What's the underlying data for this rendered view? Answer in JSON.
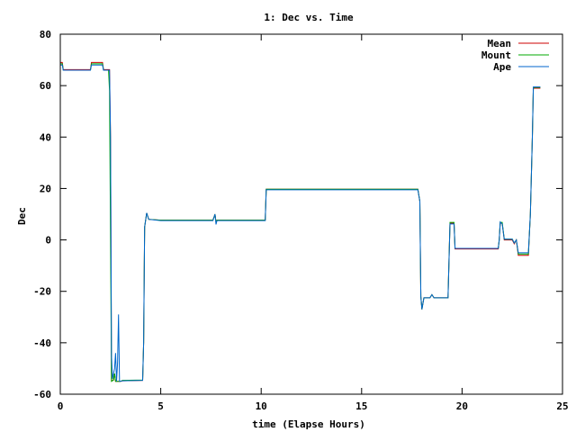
{
  "chart_data": {
    "type": "line",
    "title": "1: Dec vs. Time",
    "xlabel": "time (Elapse Hours)",
    "ylabel": "Dec",
    "xlim": [
      0,
      25
    ],
    "ylim": [
      -60,
      80
    ],
    "xticks": [
      "0",
      "5",
      "10",
      "15",
      "20",
      "25"
    ],
    "yticks": [
      "-60",
      "-40",
      "-20",
      "0",
      "20",
      "40",
      "60",
      "80"
    ],
    "grid": false,
    "legend_position": "top-right",
    "series": [
      {
        "name": "Mean",
        "color": "#cc0000",
        "points": [
          [
            0,
            69
          ],
          [
            0.1,
            69
          ],
          [
            0.15,
            66.2
          ],
          [
            1.5,
            66.2
          ],
          [
            1.55,
            69
          ],
          [
            2.1,
            69
          ],
          [
            2.15,
            66.2
          ],
          [
            2.45,
            66.2
          ],
          [
            2.5,
            40
          ],
          [
            2.55,
            -54.8
          ],
          [
            2.65,
            -54.5
          ],
          [
            2.7,
            -52
          ],
          [
            2.75,
            -55
          ],
          [
            3.0,
            -55
          ],
          [
            3.1,
            -54.8
          ],
          [
            4.1,
            -54.6
          ],
          [
            4.15,
            -40
          ],
          [
            4.2,
            5
          ],
          [
            4.3,
            10.5
          ],
          [
            4.4,
            8
          ],
          [
            5.0,
            7.7
          ],
          [
            7.6,
            7.7
          ],
          [
            7.7,
            10
          ],
          [
            7.75,
            7
          ],
          [
            7.8,
            7.7
          ],
          [
            9.5,
            7.7
          ],
          [
            10.2,
            7.7
          ],
          [
            10.25,
            19.7
          ],
          [
            17.8,
            19.7
          ],
          [
            17.9,
            15
          ],
          [
            17.95,
            -22
          ],
          [
            18.0,
            -27
          ],
          [
            18.1,
            -22.5
          ],
          [
            18.4,
            -22.5
          ],
          [
            18.5,
            -21.3
          ],
          [
            18.6,
            -22.5
          ],
          [
            19.3,
            -22.5
          ],
          [
            19.4,
            6.5
          ],
          [
            19.6,
            6.5
          ],
          [
            19.65,
            -3.5
          ],
          [
            21.8,
            -3.5
          ],
          [
            21.85,
            0
          ],
          [
            21.9,
            6.5
          ],
          [
            22.0,
            6.5
          ],
          [
            22.1,
            0
          ],
          [
            22.5,
            0
          ],
          [
            22.6,
            -1.5
          ],
          [
            22.7,
            0
          ],
          [
            22.8,
            -6
          ],
          [
            23.3,
            -6
          ],
          [
            23.4,
            10
          ],
          [
            23.5,
            40
          ],
          [
            23.55,
            59
          ],
          [
            23.9,
            59
          ]
        ]
      },
      {
        "name": "Mount",
        "color": "#00aa00",
        "points": [
          [
            0,
            68.5
          ],
          [
            0.1,
            68.5
          ],
          [
            0.15,
            66
          ],
          [
            1.5,
            66
          ],
          [
            1.55,
            68.5
          ],
          [
            2.1,
            68.5
          ],
          [
            2.15,
            66
          ],
          [
            2.4,
            66
          ],
          [
            2.45,
            58
          ],
          [
            2.55,
            -55
          ],
          [
            2.65,
            -54.5
          ],
          [
            2.7,
            -52
          ],
          [
            2.75,
            -55
          ],
          [
            3.0,
            -55
          ],
          [
            3.1,
            -54.6
          ],
          [
            4.1,
            -54.5
          ],
          [
            4.15,
            -40
          ],
          [
            4.2,
            5
          ],
          [
            4.3,
            10.5
          ],
          [
            4.4,
            8
          ],
          [
            5.0,
            7.7
          ],
          [
            7.6,
            7.7
          ],
          [
            7.7,
            10
          ],
          [
            7.75,
            7
          ],
          [
            7.8,
            7.7
          ],
          [
            9.5,
            7.7
          ],
          [
            10.2,
            7.7
          ],
          [
            10.25,
            19.7
          ],
          [
            17.8,
            19.7
          ],
          [
            17.9,
            15
          ],
          [
            17.95,
            -22
          ],
          [
            18.0,
            -27
          ],
          [
            18.1,
            -22.5
          ],
          [
            18.4,
            -22.5
          ],
          [
            18.5,
            -21.3
          ],
          [
            18.6,
            -22.5
          ],
          [
            19.3,
            -22.5
          ],
          [
            19.4,
            6.8
          ],
          [
            19.6,
            6.8
          ],
          [
            19.65,
            -3.3
          ],
          [
            21.8,
            -3.3
          ],
          [
            21.85,
            0
          ],
          [
            21.9,
            6.8
          ],
          [
            22.0,
            6.8
          ],
          [
            22.1,
            0.3
          ],
          [
            22.5,
            0.3
          ],
          [
            22.6,
            -1.2
          ],
          [
            22.7,
            0
          ],
          [
            22.8,
            -5.5
          ],
          [
            23.3,
            -5.5
          ],
          [
            23.4,
            10
          ],
          [
            23.5,
            40
          ],
          [
            23.55,
            59.3
          ],
          [
            23.9,
            59.3
          ]
        ]
      },
      {
        "name": "Ape",
        "color": "#0066cc",
        "points": [
          [
            0,
            68
          ],
          [
            0.1,
            68
          ],
          [
            0.15,
            66
          ],
          [
            1.5,
            66
          ],
          [
            1.55,
            68
          ],
          [
            2.1,
            68
          ],
          [
            2.15,
            66
          ],
          [
            2.45,
            66
          ],
          [
            2.5,
            40
          ],
          [
            2.55,
            -45
          ],
          [
            2.6,
            -54
          ],
          [
            2.7,
            -50
          ],
          [
            2.75,
            -44
          ],
          [
            2.8,
            -55
          ],
          [
            2.85,
            -48
          ],
          [
            2.9,
            -29
          ],
          [
            2.95,
            -55
          ],
          [
            3.1,
            -54.8
          ],
          [
            4.1,
            -54.6
          ],
          [
            4.15,
            -40
          ],
          [
            4.2,
            5
          ],
          [
            4.3,
            10.5
          ],
          [
            4.4,
            8
          ],
          [
            5.0,
            7.5
          ],
          [
            7.6,
            7.5
          ],
          [
            7.7,
            10
          ],
          [
            7.75,
            6
          ],
          [
            7.8,
            7.5
          ],
          [
            9.5,
            7.5
          ],
          [
            10.2,
            7.5
          ],
          [
            10.25,
            19.5
          ],
          [
            17.8,
            19.5
          ],
          [
            17.9,
            15
          ],
          [
            17.95,
            -22
          ],
          [
            18.0,
            -27
          ],
          [
            18.1,
            -22.5
          ],
          [
            18.4,
            -22.5
          ],
          [
            18.5,
            -21.3
          ],
          [
            18.6,
            -22.5
          ],
          [
            19.3,
            -22.5
          ],
          [
            19.4,
            6.2
          ],
          [
            19.6,
            6.2
          ],
          [
            19.65,
            -3.3
          ],
          [
            21.8,
            -3.3
          ],
          [
            21.85,
            0
          ],
          [
            21.9,
            7
          ],
          [
            22.0,
            6.2
          ],
          [
            22.1,
            0.3
          ],
          [
            22.5,
            0.3
          ],
          [
            22.6,
            -1.2
          ],
          [
            22.7,
            0
          ],
          [
            22.8,
            -5
          ],
          [
            23.3,
            -5
          ],
          [
            23.4,
            10
          ],
          [
            23.5,
            40
          ],
          [
            23.55,
            59.5
          ],
          [
            23.9,
            59.5
          ]
        ]
      }
    ]
  }
}
